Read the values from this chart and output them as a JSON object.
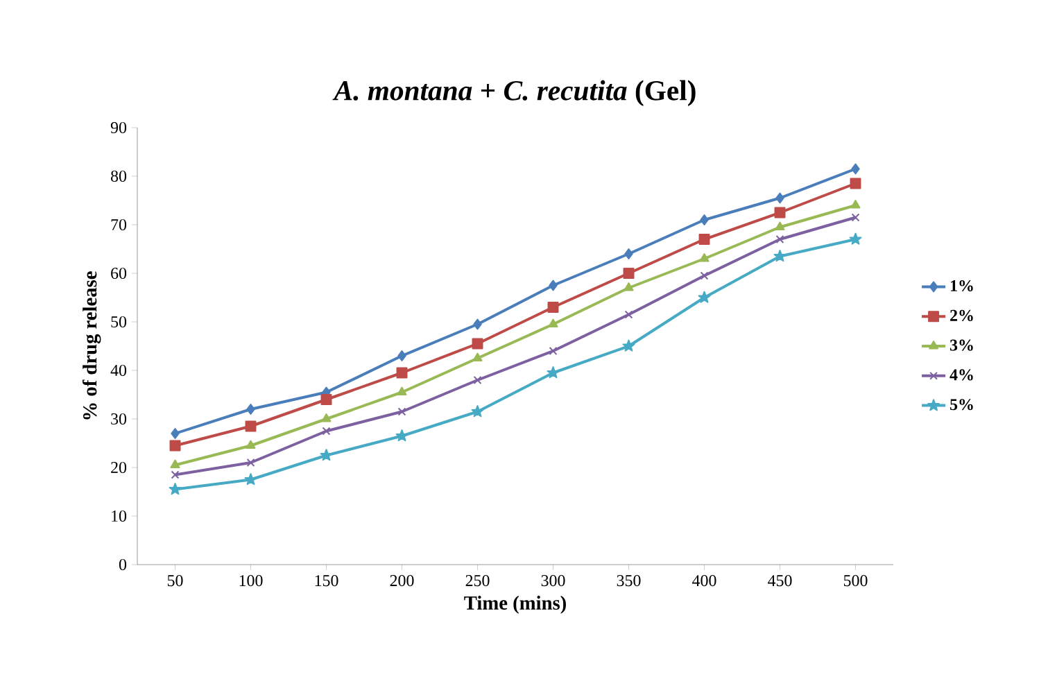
{
  "chart_data": {
    "type": "line",
    "title": "*A. montana* + *C. recutita* (Gel)",
    "xlabel": "Time (mins)",
    "ylabel": "% of drug release",
    "categories": [
      "50",
      "100",
      "150",
      "200",
      "250",
      "300",
      "350",
      "400",
      "450",
      "500"
    ],
    "ylim": [
      0,
      90
    ],
    "yticks": [
      0,
      10,
      20,
      30,
      40,
      50,
      60,
      70,
      80,
      90
    ],
    "grid": false,
    "legend": "right",
    "series": [
      {
        "name": "1%",
        "color": "#4a7ebb",
        "marker": "diamond",
        "values": [
          27,
          32,
          35.5,
          43,
          49.5,
          57.5,
          64,
          71,
          75.5,
          81.5
        ]
      },
      {
        "name": "2%",
        "color": "#be4b48",
        "marker": "square",
        "values": [
          24.5,
          28.5,
          34,
          39.5,
          45.5,
          53,
          60,
          67,
          72.5,
          78.5
        ]
      },
      {
        "name": "3%",
        "color": "#98b954",
        "marker": "triangle",
        "values": [
          20.5,
          24.5,
          30,
          35.5,
          42.5,
          49.5,
          57,
          63,
          69.5,
          74
        ]
      },
      {
        "name": "4%",
        "color": "#7d60a0",
        "marker": "cross",
        "values": [
          18.5,
          21,
          27.5,
          31.5,
          38,
          44,
          51.5,
          59.5,
          67,
          71.5
        ]
      },
      {
        "name": "5%",
        "color": "#46aac5",
        "marker": "star",
        "values": [
          15.5,
          17.5,
          22.5,
          26.5,
          31.5,
          39.5,
          45,
          55,
          63.5,
          67
        ]
      }
    ]
  }
}
